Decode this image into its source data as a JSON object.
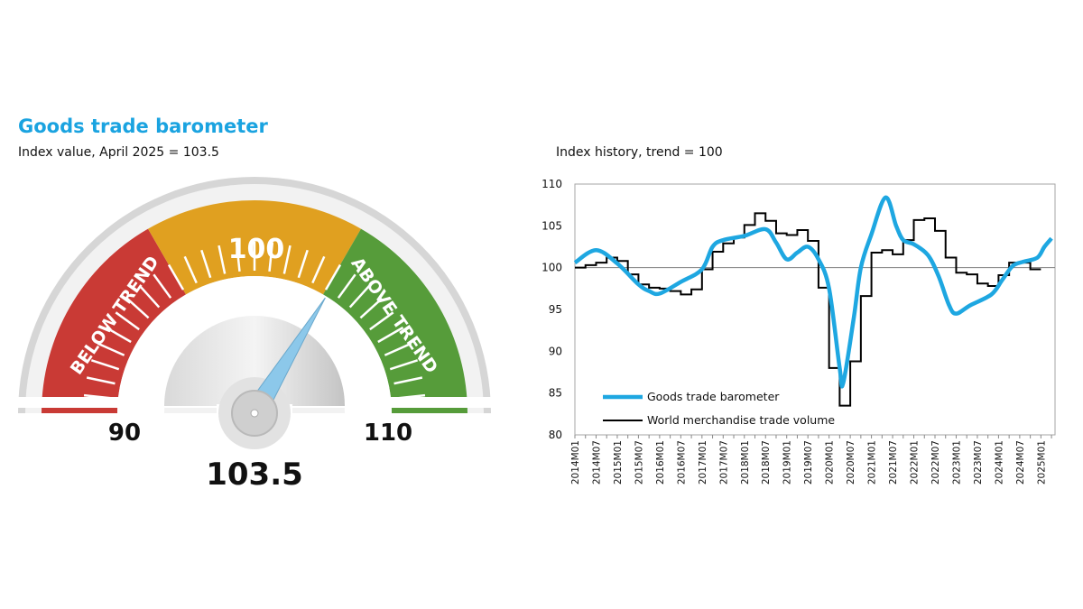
{
  "gauge": {
    "title": "Goods trade barometer",
    "subtitle": "Index value, April 2025 = 103.5",
    "value": 103.5,
    "value_label": "103.5",
    "min": 90,
    "max": 110,
    "min_label": "90",
    "max_label": "110",
    "mid_label": "100",
    "below_label": "BELOW TREND",
    "above_label": "ABOVE TREND",
    "colors": {
      "below": "#c93a35",
      "trend": "#e0a020",
      "above": "#569c3a",
      "needle": "#8cc8ea"
    }
  },
  "chart_data": {
    "type": "line",
    "title": "Index history, trend = 100",
    "xlabel": "",
    "ylabel": "",
    "ylim": [
      80,
      110
    ],
    "yticks": [
      "80",
      "85",
      "90",
      "95",
      "100",
      "105",
      "110"
    ],
    "reference_line": 100,
    "xrange": [
      "2014-01",
      "2025-05"
    ],
    "xtick_labels": [
      "2014M01",
      "2014M07",
      "2015M01",
      "2015M07",
      "2016M01",
      "2016M07",
      "2017M01",
      "2017M07",
      "2018M01",
      "2018M07",
      "2019M01",
      "2019M07",
      "2020M01",
      "2020M07",
      "2021M01",
      "2021M07",
      "2022M01",
      "2022M07",
      "2023M01",
      "2023M07",
      "2024M01",
      "2024M07",
      "2025M01"
    ],
    "legend_position": "bottom-left",
    "series": [
      {
        "name": "Goods trade barometer",
        "color": "#1ea7e1",
        "points": [
          [
            "2014-01",
            100.6
          ],
          [
            "2014-07",
            102.1
          ],
          [
            "2015-01",
            100.5
          ],
          [
            "2015-07",
            98.0
          ],
          [
            "2015-10",
            97.2
          ],
          [
            "2016-01",
            96.9
          ],
          [
            "2016-07",
            98.3
          ],
          [
            "2017-01",
            99.8
          ],
          [
            "2017-04",
            102.5
          ],
          [
            "2017-07",
            103.3
          ],
          [
            "2018-01",
            103.8
          ],
          [
            "2018-07",
            104.6
          ],
          [
            "2018-10",
            103.0
          ],
          [
            "2019-01",
            101.0
          ],
          [
            "2019-04",
            101.8
          ],
          [
            "2019-07",
            102.5
          ],
          [
            "2019-10",
            101.0
          ],
          [
            "2020-01",
            97.5
          ],
          [
            "2020-04",
            88.0
          ],
          [
            "2020-05",
            86.2
          ],
          [
            "2020-08",
            94.0
          ],
          [
            "2020-10",
            100.0
          ],
          [
            "2021-01",
            104.0
          ],
          [
            "2021-05",
            108.4
          ],
          [
            "2021-08",
            105.0
          ],
          [
            "2021-10",
            103.3
          ],
          [
            "2022-01",
            102.8
          ],
          [
            "2022-05",
            101.5
          ],
          [
            "2022-08",
            99.0
          ],
          [
            "2022-11",
            95.5
          ],
          [
            "2023-01",
            94.5
          ],
          [
            "2023-05",
            95.5
          ],
          [
            "2023-11",
            96.8
          ],
          [
            "2024-02",
            98.5
          ],
          [
            "2024-05",
            100.2
          ],
          [
            "2024-08",
            100.7
          ],
          [
            "2024-12",
            101.2
          ],
          [
            "2025-02",
            102.5
          ],
          [
            "2025-04",
            103.5
          ]
        ]
      },
      {
        "name": "World merchandise trade volume",
        "color": "#000000",
        "quarterly_from": "2014-01",
        "values": [
          100.0,
          100.3,
          100.6,
          101.2,
          100.8,
          99.2,
          98.0,
          97.6,
          97.5,
          97.2,
          96.8,
          97.4,
          99.8,
          101.9,
          102.9,
          103.6,
          105.1,
          106.5,
          105.6,
          104.1,
          103.9,
          104.5,
          103.2,
          97.6,
          88.0,
          83.5,
          88.8,
          96.6,
          101.8,
          102.1,
          101.6,
          103.3,
          105.7,
          105.9,
          104.4,
          101.2,
          99.4,
          99.2,
          98.1,
          97.8,
          99.1,
          100.6,
          100.6,
          99.8
        ]
      }
    ]
  }
}
